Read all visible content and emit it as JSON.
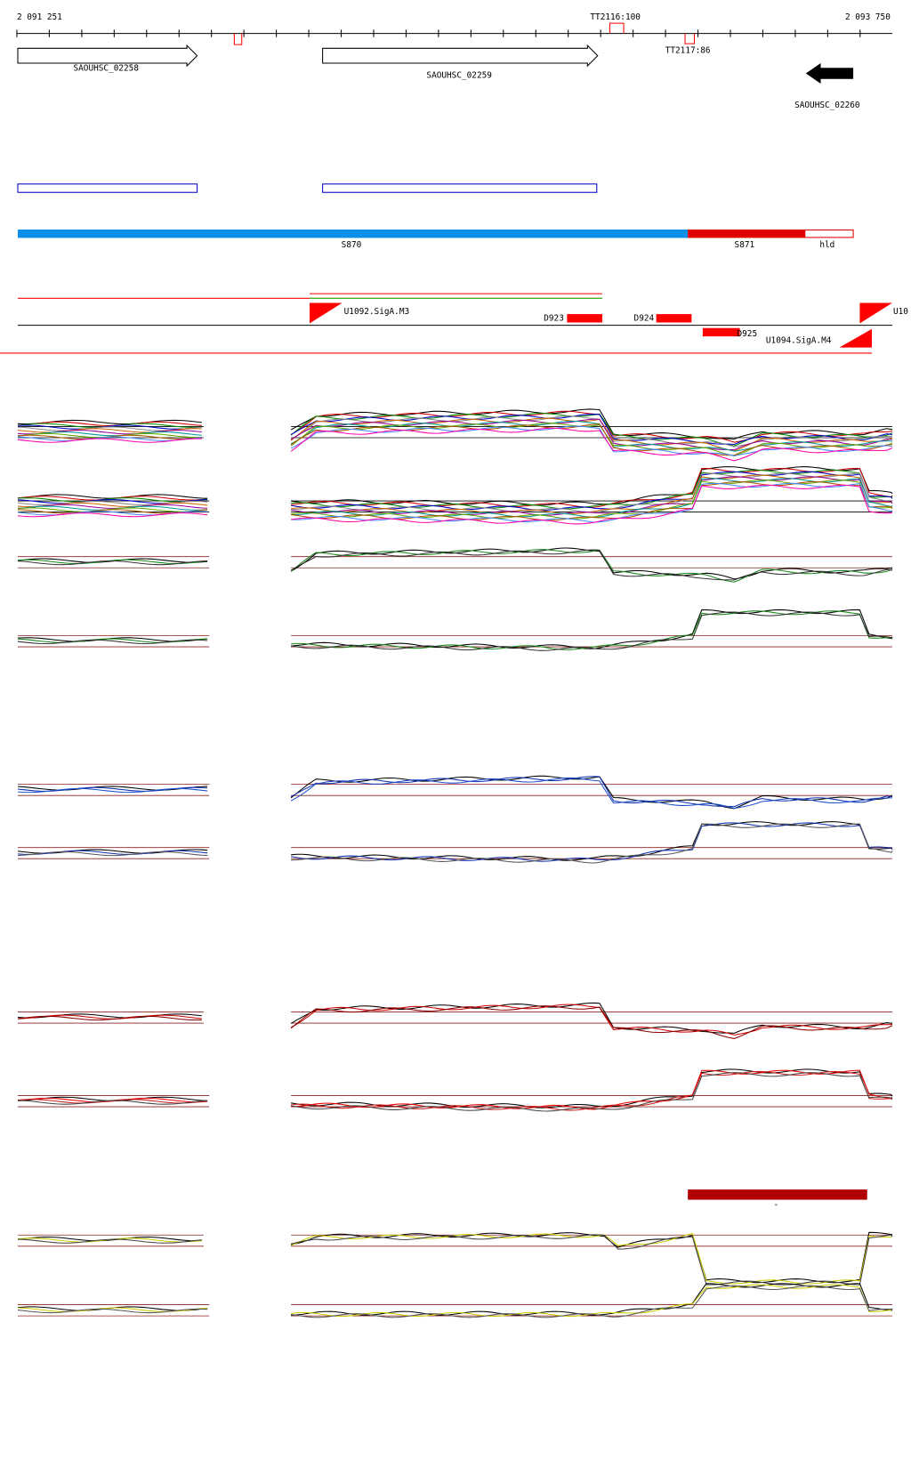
{
  "ruler": {
    "start": "2 091 251",
    "end": "2 093 750"
  },
  "terminators": [
    "TT2116:100",
    "TT2117:86"
  ],
  "genes": [
    "SAOUHSC_02258",
    "SAOUHSC_02259",
    "SAOUHSC_02260"
  ],
  "segments": [
    "S870",
    "S871",
    "hld"
  ],
  "features": [
    "U1092.SigA.M3",
    "D923",
    "D924",
    "D925",
    "U1094.SigA.M4",
    "U10"
  ],
  "marker": "-"
}
